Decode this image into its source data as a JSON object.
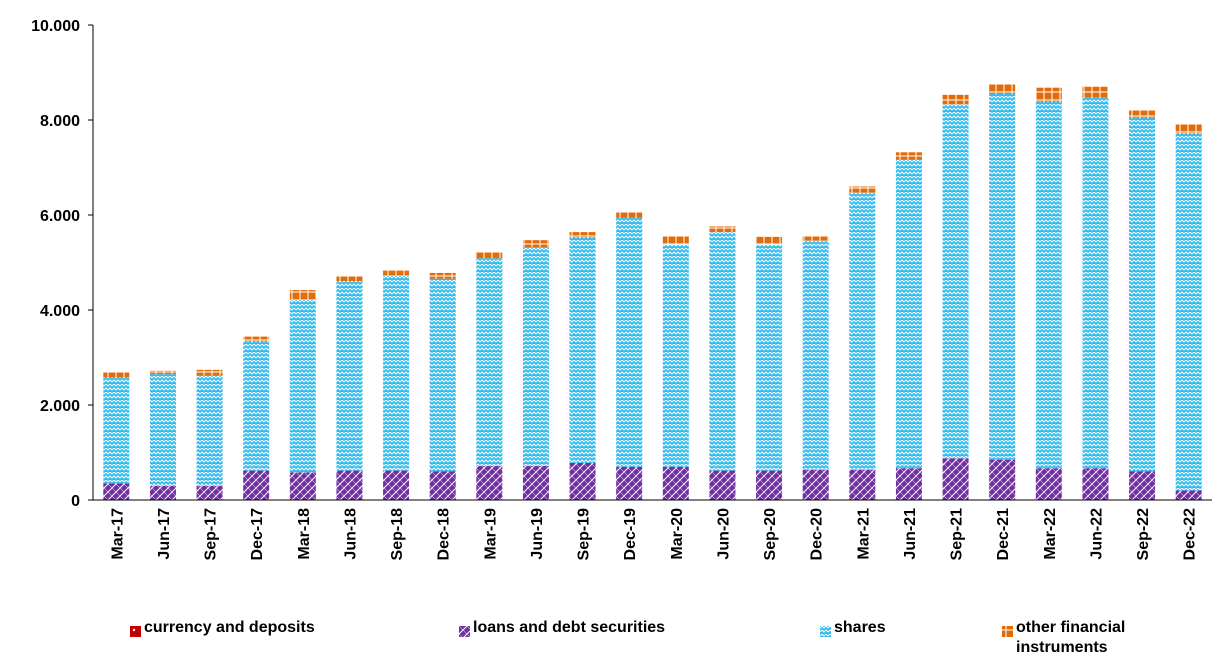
{
  "chart_data": {
    "type": "bar",
    "stacked": true,
    "categories": [
      "Mar-17",
      "Jun-17",
      "Sep-17",
      "Dec-17",
      "Mar-18",
      "Jun-18",
      "Sep-18",
      "Dec-18",
      "Mar-19",
      "Jun-19",
      "Sep-19",
      "Dec-19",
      "Mar-20",
      "Jun-20",
      "Sep-20",
      "Dec-20",
      "Mar-21",
      "Jun-21",
      "Sep-21",
      "Dec-21",
      "Mar-22",
      "Jun-22",
      "Sep-22",
      "Dec-22"
    ],
    "series": [
      {
        "name": "currency and deposits",
        "color": "#c00000",
        "pattern": "dots",
        "values": [
          0,
          0,
          0,
          0,
          0,
          0,
          0,
          0,
          0,
          0,
          0,
          0,
          0,
          0,
          0,
          0,
          0,
          0,
          0,
          0,
          0,
          0,
          0,
          0
        ]
      },
      {
        "name": "loans and debt securities",
        "color": "#7030a0",
        "pattern": "diagonal",
        "values": [
          350,
          300,
          300,
          620,
          580,
          620,
          620,
          600,
          720,
          720,
          780,
          700,
          700,
          620,
          620,
          640,
          640,
          670,
          880,
          850,
          670,
          670,
          600,
          200
        ]
      },
      {
        "name": "shares",
        "color": "#33bbee",
        "pattern": "zigzag",
        "values": [
          2230,
          2350,
          2320,
          2720,
          3630,
          3990,
          4100,
          4060,
          4370,
          4600,
          4750,
          5240,
          4680,
          5020,
          4760,
          4820,
          5830,
          6490,
          7450,
          7700,
          7720,
          7800,
          7450,
          7520
        ]
      },
      {
        "name": "other financial instruments",
        "color": "#e36c0a",
        "pattern": "grid",
        "values": [
          120,
          70,
          120,
          100,
          210,
          100,
          110,
          120,
          120,
          150,
          110,
          130,
          180,
          120,
          160,
          90,
          130,
          160,
          200,
          200,
          290,
          230,
          150,
          190
        ]
      }
    ],
    "legend_labels": [
      "currency and deposits",
      "loans and debt securities",
      "shares",
      "other financial\ninstruments"
    ],
    "y_tick_labels": [
      "0",
      "2.000",
      "4.000",
      "6.000",
      "8.000",
      "10.000"
    ],
    "ylim": [
      0,
      10000
    ],
    "y_ticks": [
      0,
      2000,
      4000,
      6000,
      8000,
      10000
    ],
    "title": "",
    "xlabel": "",
    "ylabel": "",
    "grid": false,
    "legend_position": "bottom"
  }
}
